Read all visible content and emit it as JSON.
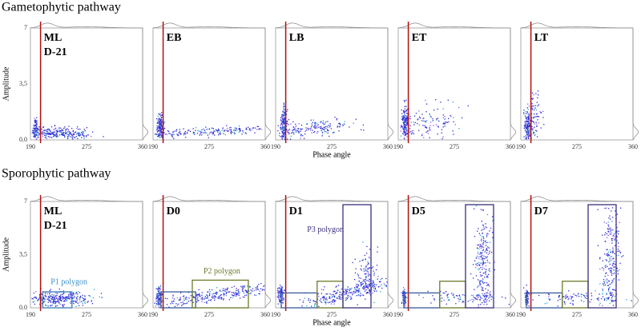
{
  "sections": [
    {
      "title": "Gametophytic pathway",
      "panels": [
        {
          "label": [
            "ML",
            "D-21"
          ]
        },
        {
          "label": [
            "EB"
          ]
        },
        {
          "label": [
            "LB"
          ]
        },
        {
          "label": [
            "ET"
          ]
        },
        {
          "label": [
            "LT"
          ]
        }
      ]
    },
    {
      "title": "Sporophytic pathway",
      "panels": [
        {
          "label": [
            "ML",
            "D-21"
          ]
        },
        {
          "label": [
            "D0"
          ]
        },
        {
          "label": [
            "D1"
          ]
        },
        {
          "label": [
            "D5"
          ]
        },
        {
          "label": [
            "D7"
          ]
        }
      ]
    }
  ],
  "y_axis": {
    "label": "Amplitude",
    "ticks": [
      "7",
      "3,5",
      "0.0"
    ]
  },
  "x_axis": {
    "label": "Phase angle",
    "ticks": [
      "190",
      "275",
      "360"
    ]
  },
  "polygons": [
    "P1 polygon",
    "P2 polygon",
    "P3 polygon"
  ]
}
